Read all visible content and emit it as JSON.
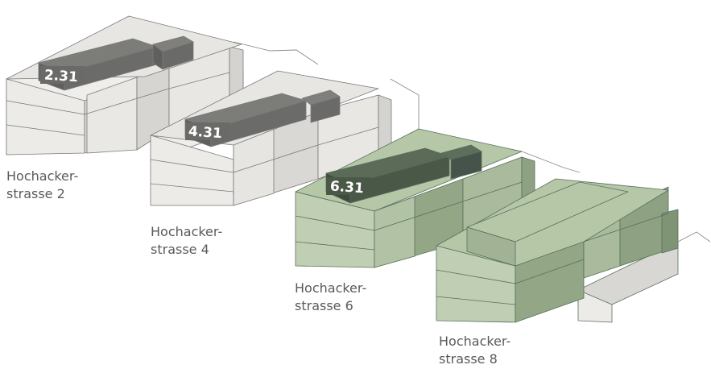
{
  "buildings": [
    {
      "name_line1": "Hochacker-",
      "name_line2": "strasse 2",
      "tag": "2.31"
    },
    {
      "name_line1": "Hochacker-",
      "name_line2": "strasse 4",
      "tag": "4.31"
    },
    {
      "name_line1": "Hochacker-",
      "name_line2": "strasse 6",
      "tag": "6.31"
    },
    {
      "name_line1": "Hochacker-",
      "name_line2": "strasse 8"
    }
  ],
  "colors": {
    "existing_building": "#e7e6e3",
    "highlight_unit": "#6a6a68",
    "new_building": "#b6c7a8",
    "new_highlight_unit": "#4a5848"
  }
}
